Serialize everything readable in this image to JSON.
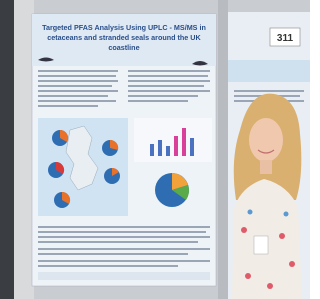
{
  "poster": {
    "title_lines": [
      "Targeted PFAS Analysis Using UPLC - MS/MS in",
      "cetaceans and stranded seals around the UK",
      "coastline"
    ]
  },
  "board_number": "311"
}
